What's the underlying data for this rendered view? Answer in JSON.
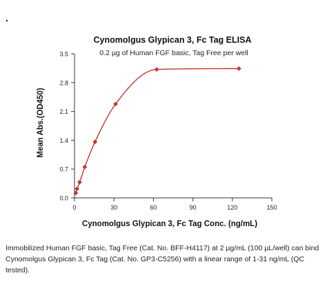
{
  "bullet": ".",
  "chart_data": {
    "type": "line",
    "title": "Cynomolgus Glypican 3, Fc Tag ELISA",
    "subtitle": "0.2 µg of Human FGF basic, Tag Free per well",
    "xlabel": "Cynomolgus Glypican 3, Fc Tag Conc. (ng/mL)",
    "ylabel": "Mean Abs.(OD450)",
    "xlim": [
      0,
      150
    ],
    "ylim": [
      0,
      3.5
    ],
    "xticks": [
      0,
      30,
      60,
      90,
      120,
      150
    ],
    "yticks": [
      0.0,
      0.7,
      1.4,
      2.1,
      2.8,
      3.5
    ],
    "yticklabels": [
      "0.0",
      "0.7",
      "1.4",
      "2.1",
      "2.8",
      "3.5"
    ],
    "grid": false,
    "points": {
      "x": [
        0.98,
        1.95,
        3.9,
        7.8,
        15.6,
        31.25,
        62.5,
        125
      ],
      "y": [
        0.12,
        0.22,
        0.38,
        0.75,
        1.36,
        2.28,
        3.12,
        3.14
      ]
    },
    "fit_curve": "smooth sigmoidal fit through points",
    "colors": {
      "series": "#c0392b",
      "axis": "#333333"
    }
  },
  "caption": "Immobilized Human FGF basic, Tag Free (Cat. No. BFF-H4117) at 2 µg/mL (100 µL/well) can bind Cynomolgus Glypican 3, Fc Tag (Cat. No. GP3-C5256) with a linear range of 1-31 ng/mL (QC tested)."
}
